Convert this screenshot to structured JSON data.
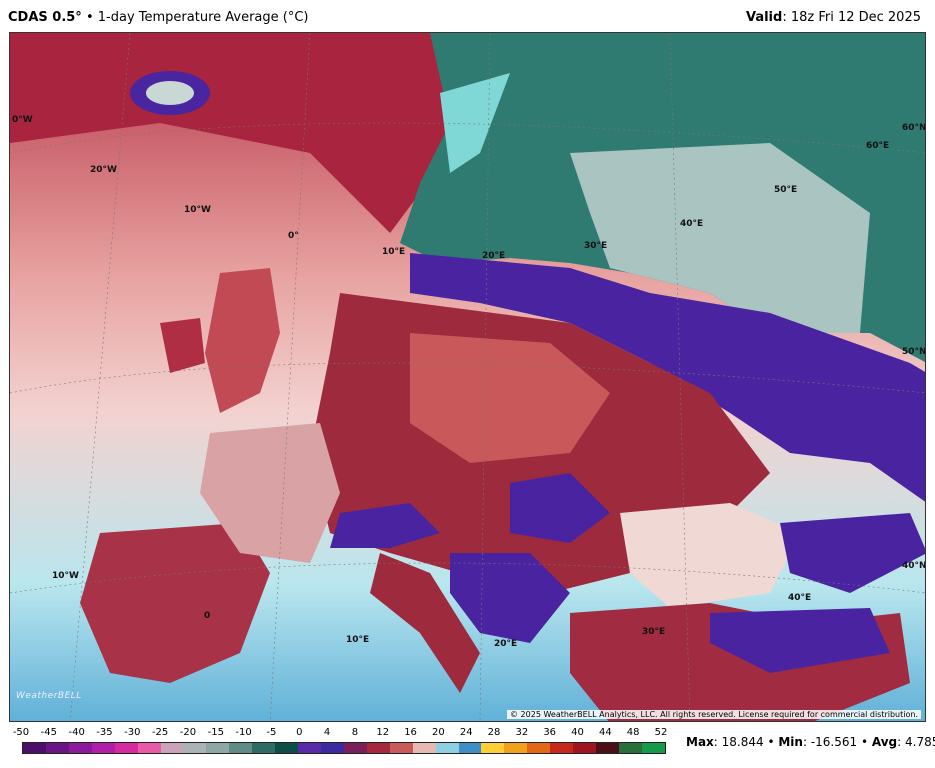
{
  "header": {
    "model": "CDAS 0.5°",
    "separator": "•",
    "product": "1-day Temperature Average (°C)",
    "valid_label": "Valid",
    "valid_value": ": 18z Fri 12 Dec 2025"
  },
  "map": {
    "copyright": "© 2025 WeatherBELL Analytics, LLC. All rights reserved. License required for commercial distribution.",
    "logo": "WeatherBELL",
    "lon_labels": [
      "0°W",
      "20°W",
      "10°W",
      "0°",
      "10°E",
      "20°E",
      "30°E",
      "40°E",
      "50°E",
      "60°E",
      "60°N",
      "50°N",
      "40°N",
      "10°W",
      "0",
      "10°E",
      "20°E",
      "30°E",
      "40°E"
    ]
  },
  "colorbar": {
    "ticks": [
      "-50",
      "-45",
      "-40",
      "-35",
      "-30",
      "-25",
      "-20",
      "-15",
      "-10",
      "-5",
      "0",
      "4",
      "8",
      "12",
      "16",
      "20",
      "24",
      "28",
      "32",
      "36",
      "40",
      "44",
      "48",
      "52"
    ],
    "colors": [
      "#4b0f6b",
      "#6a1586",
      "#8c1a9c",
      "#b01fa8",
      "#d62b9e",
      "#e85aa6",
      "#c9a3b8",
      "#aab3b5",
      "#8ea7a4",
      "#5f8c86",
      "#2d6b64",
      "#0c4d48",
      "#5a2ba8",
      "#3b2aa0",
      "#7a1f5a",
      "#a5283e",
      "#c85a5a",
      "#e7b9b5",
      "#8fd0e0",
      "#3f8fc7",
      "#ffcf33",
      "#f2a21a",
      "#e26814",
      "#c8281b",
      "#9e1522",
      "#4c0f17",
      "#2a6f3a",
      "#159a4a"
    ]
  },
  "stats": {
    "max_label": "Max",
    "max_value": ": 18.844",
    "min_label": "Min",
    "min_value": ": -16.561",
    "avg_label": "Avg",
    "avg_value": ": 4.785",
    "sep": " • "
  }
}
